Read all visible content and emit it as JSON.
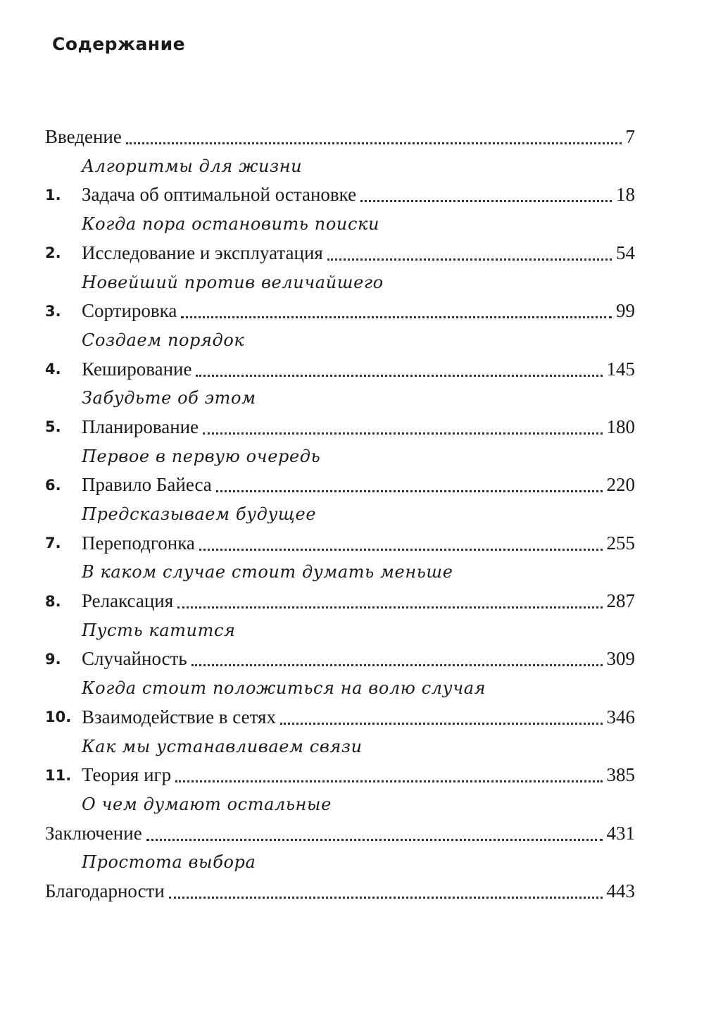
{
  "title": "Содержание",
  "entries": [
    {
      "number": "",
      "label": "Введение",
      "page": "7",
      "subtitle": "Алгоритмы для жизни"
    },
    {
      "number": "1.",
      "label": "Задача об оптимальной остановке",
      "page": "18",
      "subtitle": "Когда пора остановить поиски"
    },
    {
      "number": "2.",
      "label": "Исследование и эксплуатация",
      "page": "54",
      "subtitle": "Новейший против величайшего"
    },
    {
      "number": "3.",
      "label": "Сортировка",
      "page": "99",
      "subtitle": "Создаем порядок"
    },
    {
      "number": "4.",
      "label": "Кеширование",
      "page": "145",
      "subtitle": "Забудьте об этом"
    },
    {
      "number": "5.",
      "label": "Планирование",
      "page": "180",
      "subtitle": "Первое в первую очередь"
    },
    {
      "number": "6.",
      "label": "Правило Байеса",
      "page": "220",
      "subtitle": "Предсказываем будущее"
    },
    {
      "number": "7.",
      "label": "Переподгонка",
      "page": "255",
      "subtitle": "В каком случае стоит думать меньше"
    },
    {
      "number": "8.",
      "label": "Релаксация",
      "page": "287",
      "subtitle": "Пусть катится"
    },
    {
      "number": "9.",
      "label": "Случайность",
      "page": "309",
      "subtitle": "Когда стоит положиться на волю случая"
    },
    {
      "number": "10.",
      "label": "Взаимодействие в сетях",
      "page": "346",
      "subtitle": "Как мы устанавливаем связи"
    },
    {
      "number": "11.",
      "label": "Теория игр",
      "page": "385",
      "subtitle": "О чем думают остальные"
    },
    {
      "number": "",
      "label": "Заключение",
      "page": "431",
      "subtitle": "Простота выбора"
    },
    {
      "number": "",
      "label": "Благодарности",
      "page": "443",
      "subtitle": ""
    }
  ]
}
